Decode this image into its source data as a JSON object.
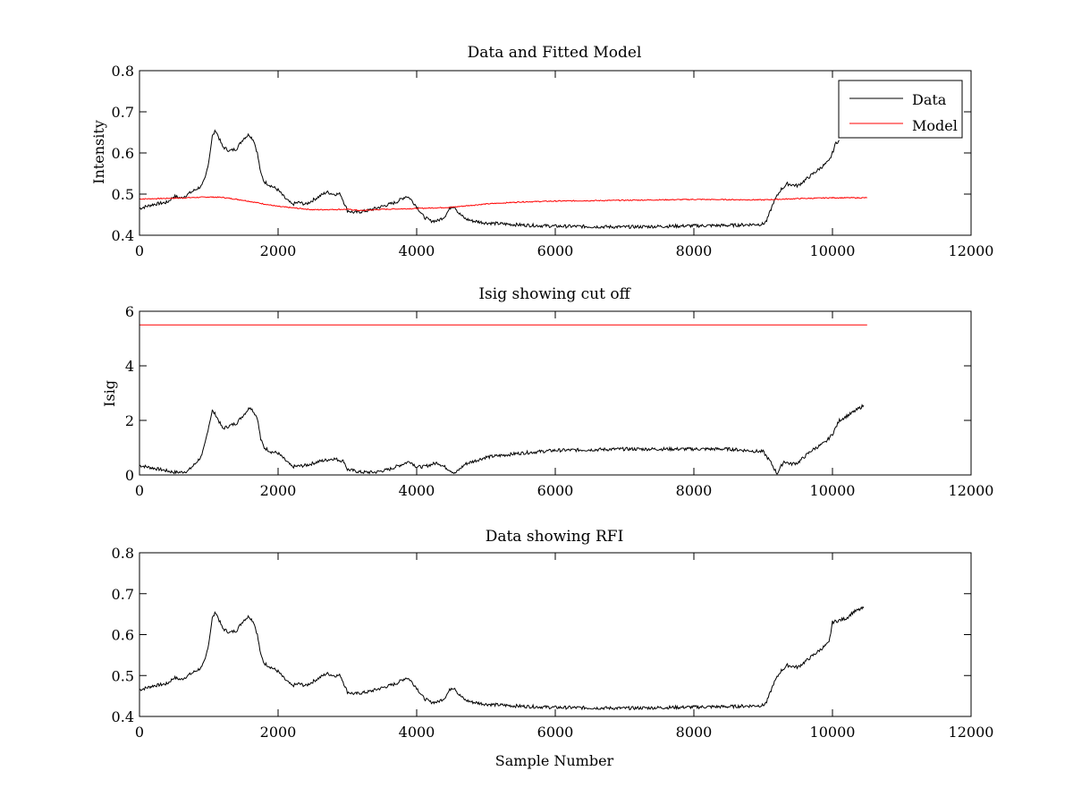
{
  "colors": {
    "data": "#000000",
    "model": "#ff0000",
    "background": "#ffffff"
  },
  "chart_data": [
    {
      "type": "line",
      "title": "Data and Fitted Model",
      "xlabel": "",
      "ylabel": "Intensity",
      "xlim": [
        0,
        12000
      ],
      "ylim": [
        0.4,
        0.8
      ],
      "xticks": [
        0,
        2000,
        4000,
        6000,
        8000,
        10000,
        12000
      ],
      "yticks": [
        0.4,
        0.5,
        0.6,
        0.7,
        0.8
      ],
      "xtick_labels": [
        "0",
        "2000",
        "4000",
        "6000",
        "8000",
        "10000",
        "12000"
      ],
      "ytick_labels": [
        "0.4",
        "0.5",
        "0.6",
        "0.7",
        "0.8"
      ],
      "legend": {
        "position": "top-right",
        "entries": [
          "Data",
          "Model"
        ]
      },
      "grid": false,
      "series": [
        {
          "name": "Data",
          "color": "#000000",
          "x": [
            0,
            200,
            400,
            500,
            600,
            700,
            800,
            900,
            950,
            1000,
            1050,
            1100,
            1200,
            1300,
            1400,
            1500,
            1580,
            1650,
            1700,
            1750,
            1800,
            1900,
            2000,
            2100,
            2200,
            2300,
            2400,
            2500,
            2600,
            2700,
            2800,
            2900,
            2950,
            3000,
            3100,
            3300,
            3500,
            3700,
            3850,
            3900,
            4000,
            4100,
            4200,
            4300,
            4400,
            4500,
            4550,
            4600,
            4700,
            4800,
            5000,
            5500,
            6000,
            7000,
            8000,
            8500,
            9000,
            9050,
            9150,
            9250,
            9350,
            9500,
            9650,
            9800,
            9950,
            10000,
            10050,
            10100
          ],
          "y": [
            0.465,
            0.475,
            0.48,
            0.495,
            0.49,
            0.5,
            0.51,
            0.52,
            0.54,
            0.58,
            0.64,
            0.655,
            0.615,
            0.605,
            0.61,
            0.635,
            0.645,
            0.63,
            0.6,
            0.55,
            0.53,
            0.52,
            0.51,
            0.49,
            0.475,
            0.48,
            0.475,
            0.485,
            0.495,
            0.505,
            0.5,
            0.5,
            0.48,
            0.46,
            0.455,
            0.46,
            0.47,
            0.48,
            0.495,
            0.49,
            0.47,
            0.445,
            0.435,
            0.435,
            0.445,
            0.47,
            0.47,
            0.455,
            0.44,
            0.435,
            0.43,
            0.425,
            0.422,
            0.42,
            0.423,
            0.424,
            0.427,
            0.435,
            0.48,
            0.51,
            0.525,
            0.52,
            0.54,
            0.56,
            0.58,
            0.6,
            0.625,
            0.63
          ]
        },
        {
          "name": "Model",
          "color": "#ff0000",
          "x": [
            0,
            500,
            1000,
            1200,
            1500,
            2000,
            2500,
            3000,
            3200,
            3500,
            4000,
            4500,
            5000,
            5500,
            6000,
            7000,
            8000,
            9000,
            9500,
            10000,
            10500
          ],
          "y": [
            0.488,
            0.49,
            0.493,
            0.492,
            0.485,
            0.47,
            0.462,
            0.463,
            0.46,
            0.463,
            0.465,
            0.468,
            0.476,
            0.481,
            0.483,
            0.485,
            0.487,
            0.486,
            0.489,
            0.491,
            0.491
          ]
        }
      ]
    },
    {
      "type": "line",
      "title": "Isig showing cut off",
      "xlabel": "",
      "ylabel": "Isig",
      "xlim": [
        0,
        12000
      ],
      "ylim": [
        0,
        6
      ],
      "xticks": [
        0,
        2000,
        4000,
        6000,
        8000,
        10000,
        12000
      ],
      "yticks": [
        0,
        2,
        4,
        6
      ],
      "xtick_labels": [
        "0",
        "2000",
        "4000",
        "6000",
        "8000",
        "10000",
        "12000"
      ],
      "ytick_labels": [
        "0",
        "2",
        "4",
        "6"
      ],
      "grid": false,
      "series": [
        {
          "color": "#000000",
          "x": [
            0,
            200,
            400,
            500,
            600,
            700,
            800,
            900,
            950,
            1000,
            1050,
            1100,
            1200,
            1300,
            1400,
            1500,
            1600,
            1700,
            1750,
            1800,
            1900,
            2000,
            2200,
            2400,
            2600,
            2800,
            2950,
            3000,
            3200,
            3400,
            3600,
            3800,
            3900,
            4000,
            4100,
            4300,
            4500,
            4550,
            4700,
            5000,
            5500,
            6000,
            7000,
            8000,
            8500,
            9000,
            9100,
            9200,
            9300,
            9400,
            9500,
            9700,
            9900,
            10000,
            10100,
            10300,
            10450
          ],
          "y": [
            0.35,
            0.25,
            0.15,
            0.1,
            0.1,
            0.15,
            0.4,
            0.7,
            1.2,
            1.8,
            2.35,
            2.2,
            1.7,
            1.8,
            1.9,
            2.2,
            2.5,
            2.1,
            1.3,
            1.0,
            0.85,
            0.8,
            0.3,
            0.35,
            0.5,
            0.6,
            0.5,
            0.2,
            0.1,
            0.1,
            0.2,
            0.4,
            0.5,
            0.3,
            0.3,
            0.45,
            0.15,
            0.05,
            0.4,
            0.65,
            0.8,
            0.9,
            0.95,
            0.95,
            0.95,
            0.85,
            0.5,
            0.05,
            0.5,
            0.4,
            0.45,
            0.9,
            1.2,
            1.5,
            2.0,
            2.3,
            2.55
          ]
        },
        {
          "color": "#ff0000",
          "x": [
            0,
            10500
          ],
          "y": [
            5.5,
            5.5
          ]
        }
      ]
    },
    {
      "type": "line",
      "title": "Data showing RFI",
      "xlabel": "Sample Number",
      "ylabel": "",
      "xlim": [
        0,
        12000
      ],
      "ylim": [
        0.4,
        0.8
      ],
      "xticks": [
        0,
        2000,
        4000,
        6000,
        8000,
        10000,
        12000
      ],
      "yticks": [
        0.4,
        0.5,
        0.6,
        0.7,
        0.8
      ],
      "xtick_labels": [
        "0",
        "2000",
        "4000",
        "6000",
        "8000",
        "10000",
        "12000"
      ],
      "ytick_labels": [
        "0.4",
        "0.5",
        "0.6",
        "0.7",
        "0.8"
      ],
      "grid": false,
      "series": [
        {
          "color": "#000000",
          "x": [
            0,
            200,
            400,
            500,
            600,
            700,
            800,
            900,
            950,
            1000,
            1050,
            1100,
            1200,
            1300,
            1400,
            1500,
            1580,
            1650,
            1700,
            1750,
            1800,
            1900,
            2000,
            2100,
            2200,
            2300,
            2400,
            2500,
            2600,
            2700,
            2800,
            2900,
            2950,
            3000,
            3100,
            3300,
            3500,
            3700,
            3850,
            3900,
            4000,
            4100,
            4200,
            4300,
            4400,
            4500,
            4550,
            4600,
            4700,
            4800,
            5000,
            5500,
            6000,
            7000,
            8000,
            8500,
            9000,
            9050,
            9150,
            9250,
            9350,
            9500,
            9650,
            9800,
            9950,
            10000,
            10100,
            10200,
            10300,
            10450
          ],
          "y": [
            0.465,
            0.475,
            0.48,
            0.495,
            0.49,
            0.5,
            0.51,
            0.52,
            0.54,
            0.58,
            0.64,
            0.655,
            0.615,
            0.605,
            0.61,
            0.635,
            0.645,
            0.63,
            0.6,
            0.55,
            0.53,
            0.52,
            0.51,
            0.49,
            0.475,
            0.48,
            0.475,
            0.485,
            0.495,
            0.505,
            0.5,
            0.5,
            0.48,
            0.46,
            0.455,
            0.46,
            0.47,
            0.48,
            0.495,
            0.49,
            0.47,
            0.445,
            0.435,
            0.435,
            0.445,
            0.47,
            0.47,
            0.455,
            0.44,
            0.435,
            0.43,
            0.425,
            0.422,
            0.42,
            0.423,
            0.424,
            0.427,
            0.435,
            0.48,
            0.51,
            0.525,
            0.52,
            0.54,
            0.56,
            0.58,
            0.63,
            0.635,
            0.64,
            0.655,
            0.665
          ]
        }
      ]
    }
  ]
}
